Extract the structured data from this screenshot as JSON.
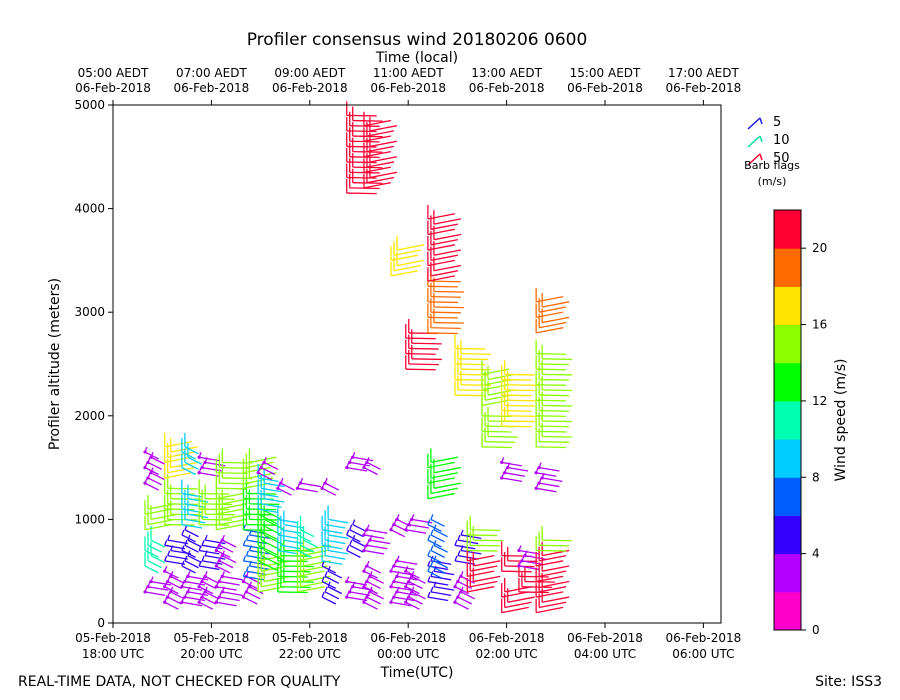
{
  "chart_data": {
    "type": "scatter",
    "marker": "wind-barb",
    "title": "Profiler consensus wind 20180206 0600",
    "top_axis_label": "Time (local)",
    "xlabel": "Time(UTC)",
    "ylabel": "Profiler altitude (meters)",
    "xlim_utc_hours": [
      -6.75,
      -0.6
    ],
    "ylim": [
      0,
      5000
    ],
    "y_ticks": [
      0,
      1000,
      2000,
      3000,
      4000,
      5000
    ],
    "x_ticks_utc": [
      {
        "line1": "05-Feb-2018",
        "line2": "18:00 UTC"
      },
      {
        "line1": "05-Feb-2018",
        "line2": "20:00 UTC"
      },
      {
        "line1": "05-Feb-2018",
        "line2": "22:00 UTC"
      },
      {
        "line1": "06-Feb-2018",
        "line2": "00:00 UTC"
      },
      {
        "line1": "06-Feb-2018",
        "line2": "02:00 UTC"
      },
      {
        "line1": "06-Feb-2018",
        "line2": "04:00 UTC"
      },
      {
        "line1": "06-Feb-2018",
        "line2": "06:00 UTC"
      }
    ],
    "x_ticks_local": [
      {
        "line1": "05:00 AEDT",
        "line2": "06-Feb-2018"
      },
      {
        "line1": "07:00 AEDT",
        "line2": "06-Feb-2018"
      },
      {
        "line1": "09:00 AEDT",
        "line2": "06-Feb-2018"
      },
      {
        "line1": "11:00 AEDT",
        "line2": "06-Feb-2018"
      },
      {
        "line1": "13:00 AEDT",
        "line2": "06-Feb-2018"
      },
      {
        "line1": "15:00 AEDT",
        "line2": "06-Feb-2018"
      },
      {
        "line1": "17:00 AEDT",
        "line2": "06-Feb-2018"
      }
    ],
    "barb_legend": {
      "entries": [
        "5",
        "10",
        "50"
      ],
      "colors": [
        "#1f1fe0",
        "#00e0a0",
        "#ff0030"
      ],
      "title_line1": "Barb flags",
      "title_line2": "(m/s)"
    },
    "colorbar": {
      "label": "Wind speed (m/s)",
      "range": [
        0,
        22
      ],
      "ticks": [
        0,
        4,
        8,
        12,
        16,
        20
      ],
      "colors": [
        "#ff00cc",
        "#b300ff",
        "#3300ff",
        "#005eff",
        "#00ccff",
        "#00ffb0",
        "#00ff00",
        "#8cff00",
        "#ffe600",
        "#ff6a00",
        "#ff0033"
      ]
    },
    "columns": [
      {
        "t": -6.0,
        "segments": [
          {
            "from": 300,
            "to": 400,
            "speed": 3
          },
          {
            "from": 550,
            "to": 800,
            "speed": 10
          },
          {
            "from": 900,
            "to": 1100,
            "speed": 14
          },
          {
            "from": 1350,
            "to": 1650,
            "speed": 2
          }
        ]
      },
      {
        "t": -5.6,
        "segments": [
          {
            "from": 200,
            "to": 500,
            "speed": 2
          },
          {
            "from": 600,
            "to": 800,
            "speed": 5
          },
          {
            "from": 950,
            "to": 1300,
            "speed": 14
          },
          {
            "from": 1400,
            "to": 1700,
            "speed": 16
          }
        ]
      },
      {
        "t": -5.25,
        "segments": [
          {
            "from": 200,
            "to": 450,
            "speed": 2
          },
          {
            "from": 550,
            "to": 900,
            "speed": 4
          },
          {
            "from": 950,
            "to": 1250,
            "speed": 9
          },
          {
            "from": 1500,
            "to": 1700,
            "speed": 8
          }
        ]
      },
      {
        "t": -4.9,
        "segments": [
          {
            "from": 200,
            "to": 450,
            "speed": 2
          },
          {
            "from": 550,
            "to": 800,
            "speed": 4
          },
          {
            "from": 950,
            "to": 1250,
            "speed": 14
          },
          {
            "from": 1450,
            "to": 1600,
            "speed": 2
          }
        ]
      },
      {
        "t": -4.55,
        "segments": [
          {
            "from": 200,
            "to": 450,
            "speed": 2
          },
          {
            "from": 550,
            "to": 800,
            "speed": 3
          },
          {
            "from": 900,
            "to": 1200,
            "speed": 14
          },
          {
            "from": 1300,
            "to": 1550,
            "speed": 15
          }
        ]
      },
      {
        "t": -4.0,
        "segments": [
          {
            "from": 250,
            "to": 450,
            "speed": 2
          },
          {
            "from": 450,
            "to": 900,
            "speed": 6
          },
          {
            "from": 900,
            "to": 1250,
            "speed": 13
          },
          {
            "from": 1300,
            "to": 1550,
            "speed": 15
          }
        ]
      },
      {
        "t": -3.7,
        "segments": [
          {
            "from": 300,
            "to": 600,
            "speed": 14
          },
          {
            "from": 600,
            "to": 1100,
            "speed": 12
          },
          {
            "from": 1100,
            "to": 1400,
            "speed": 9
          },
          {
            "from": 1450,
            "to": 1550,
            "speed": 2
          }
        ]
      },
      {
        "t": -3.3,
        "segments": [
          {
            "from": 300,
            "to": 700,
            "speed": 13
          },
          {
            "from": 700,
            "to": 1000,
            "speed": 9
          },
          {
            "from": 1300,
            "to": 1350,
            "speed": 2
          }
        ]
      },
      {
        "t": -2.9,
        "segments": [
          {
            "from": 300,
            "to": 700,
            "speed": 14
          },
          {
            "from": 700,
            "to": 900,
            "speed": 10
          },
          {
            "from": 1300,
            "to": 1350,
            "speed": 2
          }
        ]
      },
      {
        "t": -2.4,
        "segments": [
          {
            "from": 250,
            "to": 550,
            "speed": 4
          },
          {
            "from": 600,
            "to": 1000,
            "speed": 9
          },
          {
            "from": 1300,
            "to": 1350,
            "speed": 2
          }
        ]
      },
      {
        "t": -1.9,
        "segments": [
          {
            "from": 250,
            "to": 400,
            "speed": 2
          },
          {
            "from": 700,
            "to": 950,
            "speed": 5
          },
          {
            "from": 1500,
            "to": 1600,
            "speed": 2
          },
          {
            "from": 4150,
            "to": 4900,
            "speed": 20
          }
        ]
      },
      {
        "t": -1.55,
        "segments": [
          {
            "from": 200,
            "to": 550,
            "speed": 2
          },
          {
            "from": 700,
            "to": 900,
            "speed": 3
          },
          {
            "from": 1500,
            "to": 1550,
            "speed": 2
          },
          {
            "from": 4200,
            "to": 4800,
            "speed": 21
          }
        ]
      },
      {
        "t": -1.0,
        "segments": [
          {
            "from": 200,
            "to": 600,
            "speed": 2
          },
          {
            "from": 900,
            "to": 1000,
            "speed": 2
          },
          {
            "from": 3350,
            "to": 3600,
            "speed": 17
          }
        ]
      },
      {
        "t": -0.7,
        "segments": [
          {
            "from": 200,
            "to": 500,
            "speed": 2
          },
          {
            "from": 900,
            "to": 1000,
            "speed": 2
          },
          {
            "from": 2450,
            "to": 2800,
            "speed": 21
          }
        ]
      },
      {
        "t": -0.25,
        "segments": [
          {
            "from": 250,
            "to": 600,
            "speed": 4
          },
          {
            "from": 500,
            "to": 1000,
            "speed": 6
          },
          {
            "from": 1200,
            "to": 1550,
            "speed": 13
          },
          {
            "from": 2800,
            "to": 3300,
            "speed": 19
          },
          {
            "from": 3300,
            "to": 3900,
            "speed": 22
          }
        ]
      },
      {
        "t": 0.3,
        "segments": [
          {
            "from": 200,
            "to": 450,
            "speed": 2
          },
          {
            "from": 600,
            "to": 850,
            "speed": 5
          },
          {
            "from": 2200,
            "to": 2650,
            "speed": 16
          }
        ]
      },
      {
        "t": 0.55,
        "segments": [
          {
            "from": 300,
            "to": 600,
            "speed": 21
          },
          {
            "from": 700,
            "to": 900,
            "speed": 14
          }
        ]
      },
      {
        "t": 0.85,
        "segments": [
          {
            "from": 1700,
            "to": 2000,
            "speed": 15
          },
          {
            "from": 2100,
            "to": 2400,
            "speed": 15
          }
        ]
      },
      {
        "t": 1.25,
        "segments": [
          {
            "from": 100,
            "to": 300,
            "speed": 21
          },
          {
            "from": 500,
            "to": 650,
            "speed": 21
          },
          {
            "from": 1400,
            "to": 1550,
            "speed": 2
          },
          {
            "from": 1900,
            "to": 2400,
            "speed": 16
          }
        ]
      },
      {
        "t": 1.6,
        "segments": [
          {
            "from": 300,
            "to": 450,
            "speed": 21
          },
          {
            "from": 550,
            "to": 700,
            "speed": 3
          }
        ]
      },
      {
        "t": 1.95,
        "segments": [
          {
            "from": 100,
            "to": 650,
            "speed": 21
          },
          {
            "from": 700,
            "to": 800,
            "speed": 14
          },
          {
            "from": 1300,
            "to": 1500,
            "speed": 3
          },
          {
            "from": 1700,
            "to": 2600,
            "speed": 15
          },
          {
            "from": 2800,
            "to": 3100,
            "speed": 19
          }
        ]
      }
    ]
  },
  "footer": {
    "left_note": "REAL-TIME DATA, NOT CHECKED FOR QUALITY",
    "site": "Site: ISS3"
  }
}
